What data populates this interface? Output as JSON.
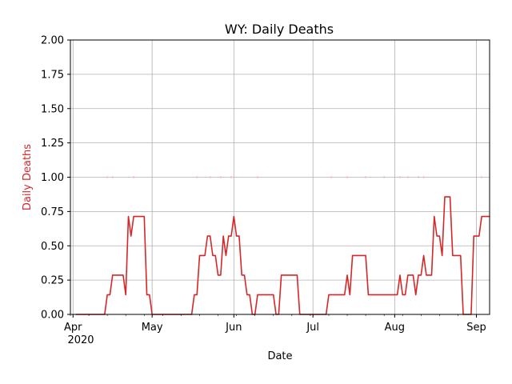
{
  "chart_data": {
    "type": "line",
    "title": "WY: Daily Deaths",
    "xlabel": "Date",
    "ylabel": "Daily Deaths",
    "year_label": "2020",
    "x_range": [
      "2020-03-31",
      "2020-09-06"
    ],
    "ylim": [
      0,
      2.0
    ],
    "grid": true,
    "y_ticks": [
      {
        "value": 0,
        "label": "0.00"
      },
      {
        "value": 0.25,
        "label": "0.25"
      },
      {
        "value": 0.5,
        "label": "0.50"
      },
      {
        "value": 0.75,
        "label": "0.75"
      },
      {
        "value": 1.0,
        "label": "1.00"
      },
      {
        "value": 1.25,
        "label": "1.25"
      },
      {
        "value": 1.5,
        "label": "1.50"
      },
      {
        "value": 1.75,
        "label": "1.75"
      },
      {
        "value": 2.0,
        "label": "2.00"
      }
    ],
    "x_ticks": [
      {
        "date": "2020-04-01",
        "label": "Apr"
      },
      {
        "date": "2020-05-01",
        "label": "May"
      },
      {
        "date": "2020-06-01",
        "label": "Jun"
      },
      {
        "date": "2020-07-01",
        "label": "Jul"
      },
      {
        "date": "2020-08-01",
        "label": "Aug"
      },
      {
        "date": "2020-09-01",
        "label": "Sep"
      }
    ],
    "colors": {
      "line": "#d62728",
      "ylabel": "#d62728",
      "grid": "#b0b0b0",
      "points": "#f4b6b6"
    },
    "series": [
      {
        "kind": "line",
        "points": [
          [
            "2020-04-02",
            0
          ],
          [
            "2020-04-13",
            0
          ],
          [
            "2020-04-14",
            0.143
          ],
          [
            "2020-04-15",
            0.143
          ],
          [
            "2020-04-16",
            0.286
          ],
          [
            "2020-04-20",
            0.286
          ],
          [
            "2020-04-21",
            0.143
          ],
          [
            "2020-04-22",
            0.714
          ],
          [
            "2020-04-23",
            0.571
          ],
          [
            "2020-04-24",
            0.714
          ],
          [
            "2020-04-28",
            0.714
          ],
          [
            "2020-04-29",
            0.143
          ],
          [
            "2020-04-30",
            0.143
          ],
          [
            "2020-05-01",
            0
          ],
          [
            "2020-05-16",
            0
          ],
          [
            "2020-05-17",
            0.143
          ],
          [
            "2020-05-18",
            0.143
          ],
          [
            "2020-05-19",
            0.429
          ],
          [
            "2020-05-21",
            0.429
          ],
          [
            "2020-05-22",
            0.571
          ],
          [
            "2020-05-23",
            0.571
          ],
          [
            "2020-05-24",
            0.429
          ],
          [
            "2020-05-25",
            0.429
          ],
          [
            "2020-05-26",
            0.286
          ],
          [
            "2020-05-27",
            0.286
          ],
          [
            "2020-05-28",
            0.571
          ],
          [
            "2020-05-29",
            0.429
          ],
          [
            "2020-05-30",
            0.571
          ],
          [
            "2020-05-31",
            0.571
          ],
          [
            "2020-06-01",
            0.714
          ],
          [
            "2020-06-02",
            0.571
          ],
          [
            "2020-06-03",
            0.571
          ],
          [
            "2020-06-04",
            0.286
          ],
          [
            "2020-06-05",
            0.286
          ],
          [
            "2020-06-06",
            0.143
          ],
          [
            "2020-06-07",
            0.143
          ],
          [
            "2020-06-08",
            0
          ],
          [
            "2020-06-09",
            0
          ],
          [
            "2020-06-10",
            0.143
          ],
          [
            "2020-06-16",
            0.143
          ],
          [
            "2020-06-17",
            0
          ],
          [
            "2020-06-18",
            0
          ],
          [
            "2020-06-19",
            0.286
          ],
          [
            "2020-06-25",
            0.286
          ],
          [
            "2020-06-26",
            0
          ],
          [
            "2020-07-06",
            0
          ],
          [
            "2020-07-07",
            0.143
          ],
          [
            "2020-07-13",
            0.143
          ],
          [
            "2020-07-14",
            0.286
          ],
          [
            "2020-07-15",
            0.143
          ],
          [
            "2020-07-16",
            0.429
          ],
          [
            "2020-07-21",
            0.429
          ],
          [
            "2020-07-22",
            0.143
          ],
          [
            "2020-08-02",
            0.143
          ],
          [
            "2020-08-03",
            0.286
          ],
          [
            "2020-08-04",
            0.143
          ],
          [
            "2020-08-05",
            0.143
          ],
          [
            "2020-08-06",
            0.286
          ],
          [
            "2020-08-08",
            0.286
          ],
          [
            "2020-08-09",
            0.143
          ],
          [
            "2020-08-10",
            0.286
          ],
          [
            "2020-08-11",
            0.286
          ],
          [
            "2020-08-12",
            0.429
          ],
          [
            "2020-08-13",
            0.286
          ],
          [
            "2020-08-15",
            0.286
          ],
          [
            "2020-08-16",
            0.714
          ],
          [
            "2020-08-17",
            0.571
          ],
          [
            "2020-08-18",
            0.571
          ],
          [
            "2020-08-19",
            0.429
          ],
          [
            "2020-08-20",
            0.857
          ],
          [
            "2020-08-22",
            0.857
          ],
          [
            "2020-08-23",
            0.429
          ],
          [
            "2020-08-26",
            0.429
          ],
          [
            "2020-08-27",
            0
          ],
          [
            "2020-08-30",
            0
          ],
          [
            "2020-08-31",
            0.571
          ],
          [
            "2020-09-02",
            0.571
          ],
          [
            "2020-09-03",
            0.714
          ],
          [
            "2020-09-06",
            0.714
          ]
        ]
      },
      {
        "kind": "scatter",
        "points": [
          [
            "2020-04-14",
            1
          ],
          [
            "2020-04-16",
            1
          ],
          [
            "2020-04-24",
            1
          ],
          [
            "2020-05-18",
            1
          ],
          [
            "2020-05-23",
            1
          ],
          [
            "2020-05-27",
            1
          ],
          [
            "2020-05-31",
            1
          ],
          [
            "2020-06-10",
            1
          ],
          [
            "2020-07-08",
            1
          ],
          [
            "2020-07-14",
            1
          ],
          [
            "2020-07-21",
            1
          ],
          [
            "2020-07-28",
            1
          ],
          [
            "2020-08-03",
            1
          ],
          [
            "2020-08-06",
            1
          ],
          [
            "2020-08-10",
            1
          ],
          [
            "2020-08-12",
            1
          ],
          [
            "2020-09-03",
            1
          ]
        ]
      }
    ]
  }
}
